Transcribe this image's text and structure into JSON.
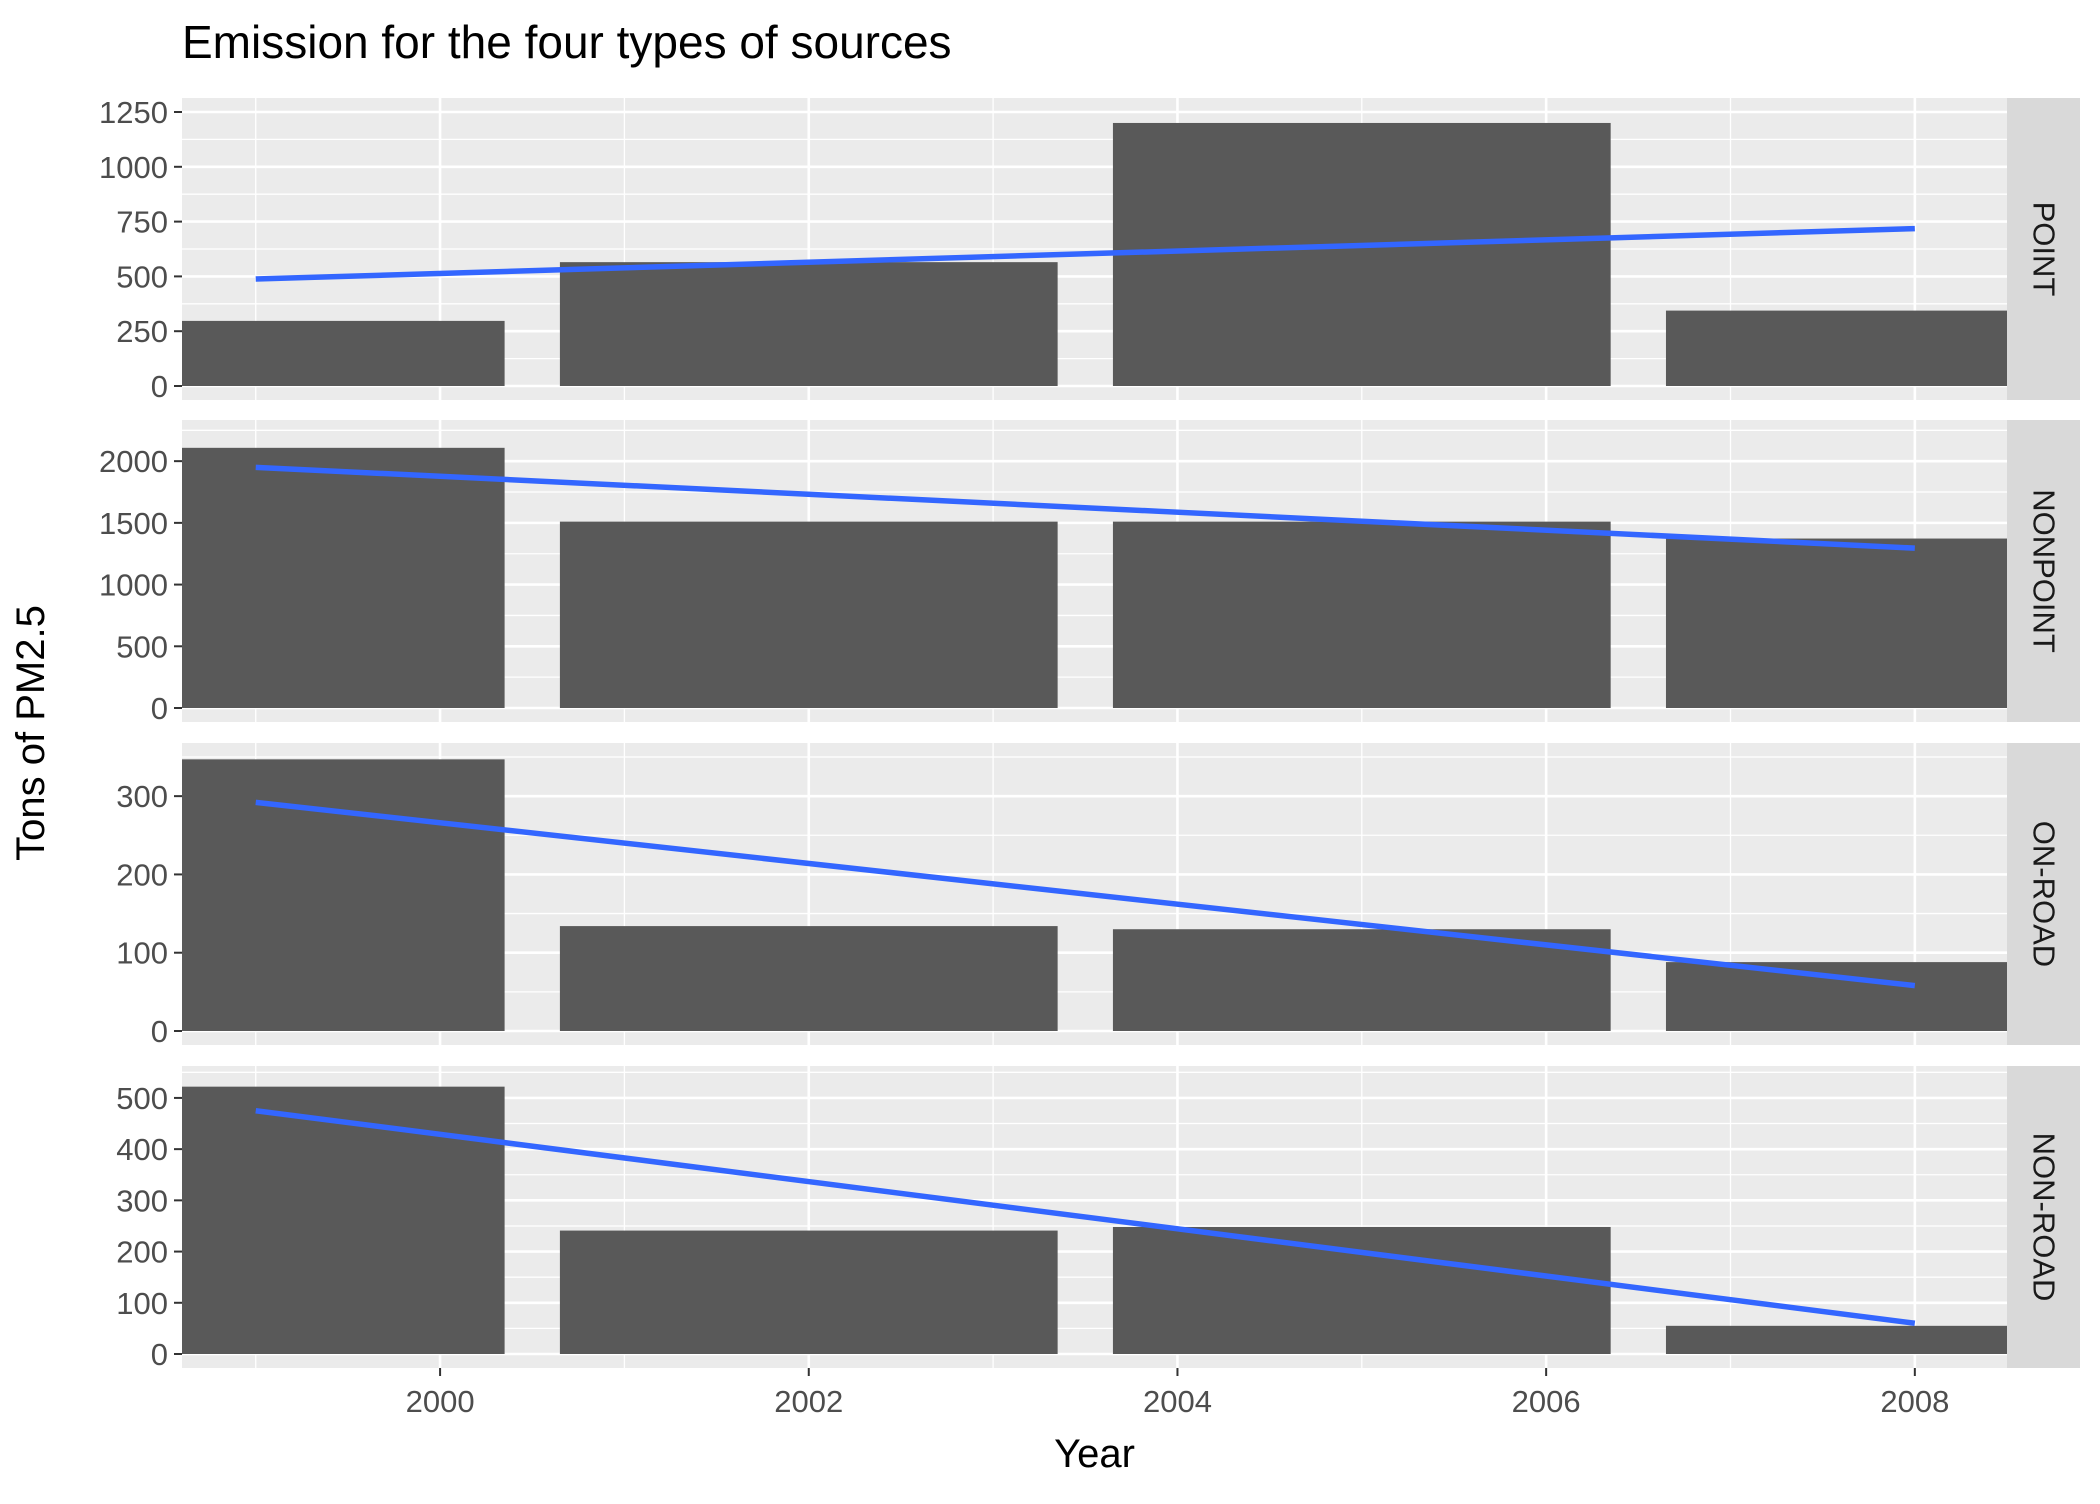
{
  "chart_data": {
    "type": "bar",
    "title": "Emission for the four types of sources",
    "xlabel": "Year",
    "ylabel": "Tons of PM2.5",
    "x_ticks": [
      2000,
      2002,
      2004,
      2006,
      2008
    ],
    "xlim": [
      1998.6,
      2008.5
    ],
    "categories": [
      1999,
      2002,
      2005,
      2008
    ],
    "bar_width_years": 2.7,
    "grid": true,
    "legend": "none",
    "colors": {
      "bar": "#595959",
      "trend": "#3366ff",
      "panel_bg": "#ebebeb",
      "grid": "#ffffff",
      "strip_bg": "#d9d9d9"
    },
    "panels": [
      {
        "label": "POINT",
        "values": [
          297,
          565,
          1200,
          344
        ],
        "ylim": [
          0,
          1250
        ],
        "y_ticks": [
          0,
          250,
          500,
          750,
          1000,
          1250
        ],
        "trend": {
          "start": [
            1999,
            488
          ],
          "end": [
            2008,
            718
          ]
        }
      },
      {
        "label": "NONPOINT",
        "values": [
          2108,
          1510,
          1510,
          1373
        ],
        "ylim": [
          0,
          2220
        ],
        "y_ticks": [
          0,
          500,
          1000,
          1500,
          2000
        ],
        "trend": {
          "start": [
            1999,
            1950
          ],
          "end": [
            2008,
            1295
          ]
        }
      },
      {
        "label": "ON-ROAD",
        "values": [
          347,
          134,
          130,
          88
        ],
        "ylim": [
          0,
          350
        ],
        "y_ticks": [
          0,
          100,
          200,
          300
        ],
        "trend": {
          "start": [
            1999,
            292
          ],
          "end": [
            2008,
            58
          ]
        }
      },
      {
        "label": "NON-ROAD",
        "values": [
          522,
          241,
          248,
          55
        ],
        "ylim": [
          0,
          535
        ],
        "y_ticks": [
          0,
          100,
          200,
          300,
          400,
          500
        ],
        "trend": {
          "start": [
            1999,
            475
          ],
          "end": [
            2008,
            60
          ]
        }
      }
    ]
  }
}
